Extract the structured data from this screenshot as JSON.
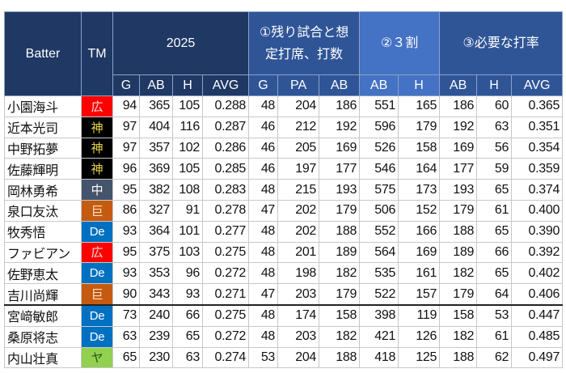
{
  "header": {
    "batter": "Batter",
    "tm": "TM",
    "groups": [
      "2025",
      "①残り試合と想定打席、打数",
      "②３割",
      "③必要な打率"
    ],
    "group1_line1": "①残り試合と想",
    "group1_line2": "定打席、打数",
    "sub": [
      "G",
      "AB",
      "H",
      "AVG",
      "G",
      "PA",
      "AB",
      "AB",
      "H",
      "AB",
      "H",
      "AVG"
    ]
  },
  "team_colors": {
    "広": {
      "bg": "#ff0000",
      "fg": "#ffe0e0"
    },
    "神": {
      "bg": "#000000",
      "fg": "#e8d44d"
    },
    "中": {
      "bg": "#44546a",
      "fg": "#ffffff"
    },
    "巨": {
      "bg": "#c55a11",
      "fg": "#ffe0c0"
    },
    "De": {
      "bg": "#0070c0",
      "fg": "#ffffff"
    },
    "ヤ": {
      "bg": "#92d050",
      "fg": "#2a5010"
    }
  },
  "rows": [
    {
      "name": "小園海斗",
      "tm": "広",
      "v": [
        "94",
        "365",
        "105",
        "0.288",
        "48",
        "204",
        "186",
        "551",
        "165",
        "186",
        "60",
        "0.365"
      ]
    },
    {
      "name": "近本光司",
      "tm": "神",
      "v": [
        "97",
        "404",
        "116",
        "0.287",
        "46",
        "212",
        "192",
        "596",
        "179",
        "192",
        "63",
        "0.351"
      ]
    },
    {
      "name": "中野拓夢",
      "tm": "神",
      "v": [
        "97",
        "357",
        "102",
        "0.286",
        "46",
        "205",
        "169",
        "526",
        "158",
        "169",
        "56",
        "0.354"
      ]
    },
    {
      "name": "佐藤輝明",
      "tm": "神",
      "v": [
        "96",
        "369",
        "105",
        "0.285",
        "46",
        "197",
        "177",
        "546",
        "164",
        "177",
        "59",
        "0.359"
      ]
    },
    {
      "name": "岡林勇希",
      "tm": "中",
      "v": [
        "95",
        "382",
        "108",
        "0.283",
        "48",
        "215",
        "193",
        "575",
        "173",
        "193",
        "65",
        "0.374"
      ]
    },
    {
      "name": "泉口友汰",
      "tm": "巨",
      "v": [
        "86",
        "327",
        "91",
        "0.278",
        "47",
        "202",
        "179",
        "506",
        "152",
        "179",
        "61",
        "0.400"
      ]
    },
    {
      "name": "牧秀悟",
      "tm": "De",
      "v": [
        "93",
        "364",
        "101",
        "0.277",
        "48",
        "202",
        "188",
        "552",
        "166",
        "188",
        "65",
        "0.390"
      ]
    },
    {
      "name": "ファビアン",
      "tm": "広",
      "v": [
        "95",
        "375",
        "103",
        "0.275",
        "48",
        "201",
        "189",
        "564",
        "169",
        "189",
        "66",
        "0.392"
      ]
    },
    {
      "name": "佐野恵太",
      "tm": "De",
      "v": [
        "93",
        "353",
        "96",
        "0.272",
        "48",
        "198",
        "182",
        "535",
        "161",
        "182",
        "65",
        "0.402"
      ]
    },
    {
      "name": "吉川尚輝",
      "tm": "巨",
      "v": [
        "90",
        "343",
        "93",
        "0.271",
        "47",
        "203",
        "179",
        "522",
        "157",
        "179",
        "64",
        "0.406"
      ]
    },
    {
      "name": "宮﨑敏郎",
      "tm": "De",
      "v": [
        "73",
        "240",
        "66",
        "0.275",
        "48",
        "174",
        "158",
        "398",
        "119",
        "158",
        "53",
        "0.447"
      ]
    },
    {
      "name": "桑原将志",
      "tm": "De",
      "v": [
        "63",
        "239",
        "65",
        "0.272",
        "48",
        "203",
        "182",
        "421",
        "126",
        "182",
        "61",
        "0.485"
      ]
    },
    {
      "name": "内山壮真",
      "tm": "ヤ",
      "v": [
        "65",
        "230",
        "63",
        "0.274",
        "53",
        "204",
        "188",
        "418",
        "125",
        "188",
        "62",
        "0.497"
      ]
    }
  ]
}
